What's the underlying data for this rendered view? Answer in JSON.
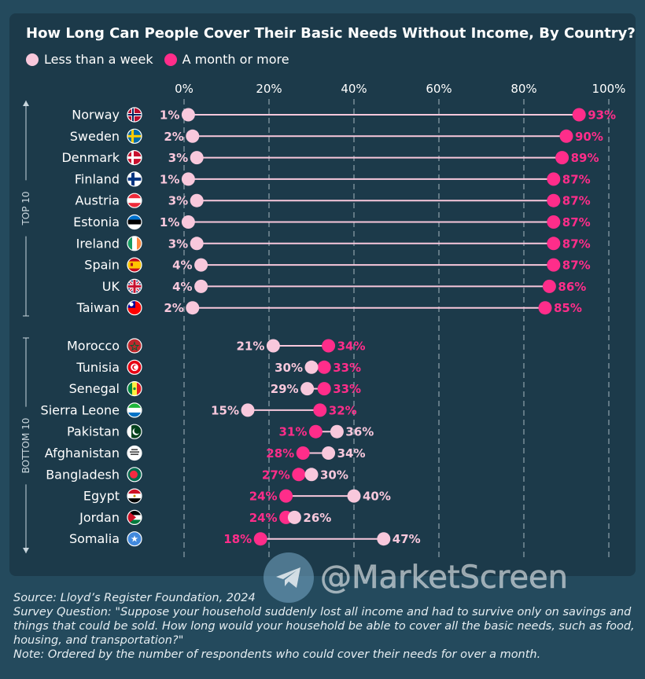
{
  "title": "How Long Can People Cover Their Basic Needs Without Income, By Country?",
  "legend": [
    {
      "label": "Less than a week",
      "color": "#f8c8dc"
    },
    {
      "label": "A month or more",
      "color": "#ff2d8a"
    }
  ],
  "group_labels": {
    "top": "TOP 10",
    "bottom": "BOTTOM 10"
  },
  "watermark": "@MarketScreen",
  "footer": {
    "source": "Source: Lloyd’s Register Foundation, 2024",
    "question": "Survey Question: \"Suppose your household suddenly lost all income and had to survive only on savings and things that could be sold. How long would your household be able to cover all the basic needs, such as food, housing, and transportation?\"",
    "note": "Note: Ordered by the number of respondents who could cover their needs for over a month."
  },
  "chart_data": {
    "type": "dumbbell",
    "title": "How Long Can People Cover Their Basic Needs Without Income, By Country?",
    "x_ticks": [
      "0%",
      "20%",
      "40%",
      "60%",
      "80%",
      "100%"
    ],
    "xlim": [
      0,
      100
    ],
    "grid": "vertical dashed",
    "legend_position": "top-left",
    "series": [
      {
        "name": "Less than a week",
        "color": "#f8c8dc"
      },
      {
        "name": "A month or more",
        "color": "#ff2d8a"
      }
    ],
    "groups": [
      {
        "name": "TOP 10",
        "rows": [
          {
            "country": "Norway",
            "less_than_week": 1,
            "month_or_more": 93
          },
          {
            "country": "Sweden",
            "less_than_week": 2,
            "month_or_more": 90
          },
          {
            "country": "Denmark",
            "less_than_week": 3,
            "month_or_more": 89
          },
          {
            "country": "Finland",
            "less_than_week": 1,
            "month_or_more": 87
          },
          {
            "country": "Austria",
            "less_than_week": 3,
            "month_or_more": 87
          },
          {
            "country": "Estonia",
            "less_than_week": 1,
            "month_or_more": 87
          },
          {
            "country": "Ireland",
            "less_than_week": 3,
            "month_or_more": 87
          },
          {
            "country": "Spain",
            "less_than_week": 4,
            "month_or_more": 87
          },
          {
            "country": "UK",
            "less_than_week": 4,
            "month_or_more": 86
          },
          {
            "country": "Taiwan",
            "less_than_week": 2,
            "month_or_more": 85
          }
        ]
      },
      {
        "name": "BOTTOM 10",
        "rows": [
          {
            "country": "Morocco",
            "less_than_week": 21,
            "month_or_more": 34
          },
          {
            "country": "Tunisia",
            "less_than_week": 30,
            "month_or_more": 33
          },
          {
            "country": "Senegal",
            "less_than_week": 29,
            "month_or_more": 33
          },
          {
            "country": "Sierra Leone",
            "less_than_week": 15,
            "month_or_more": 32
          },
          {
            "country": "Pakistan",
            "less_than_week": 36,
            "month_or_more": 31
          },
          {
            "country": "Afghanistan",
            "less_than_week": 34,
            "month_or_more": 28
          },
          {
            "country": "Bangladesh",
            "less_than_week": 30,
            "month_or_more": 27
          },
          {
            "country": "Egypt",
            "less_than_week": 40,
            "month_or_more": 24
          },
          {
            "country": "Jordan",
            "less_than_week": 26,
            "month_or_more": 24
          },
          {
            "country": "Somalia",
            "less_than_week": 47,
            "month_or_more": 18
          }
        ]
      }
    ]
  }
}
